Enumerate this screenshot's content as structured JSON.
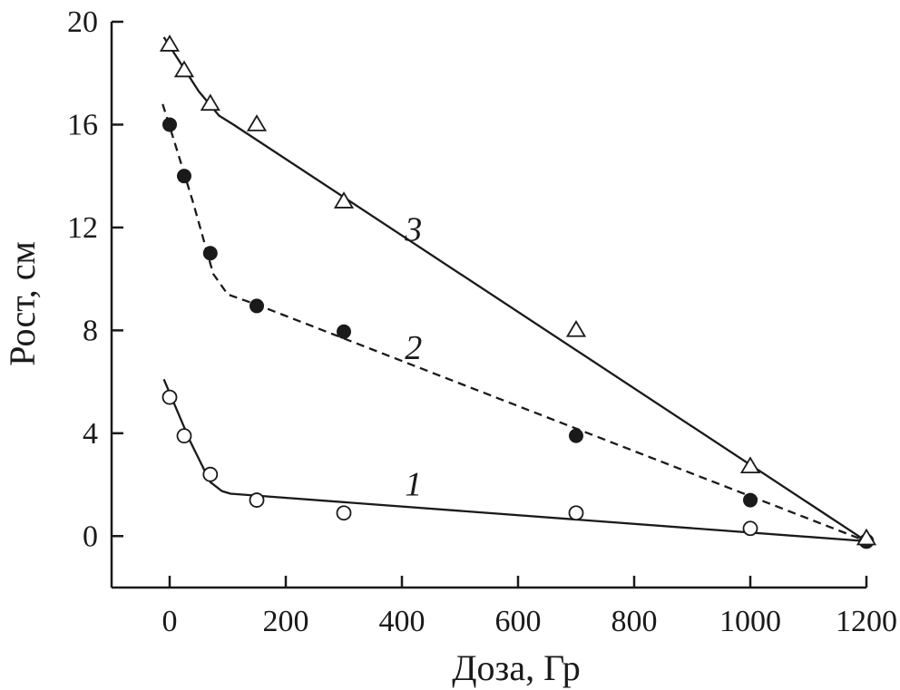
{
  "chart_data": {
    "type": "line",
    "xlabel": "Доза, Гр",
    "ylabel": "Рост, см",
    "xlim": [
      -100,
      1200
    ],
    "ylim": [
      -2,
      20
    ],
    "x_ticks": [
      0,
      200,
      400,
      600,
      800,
      1000,
      1200
    ],
    "y_ticks": [
      0,
      4,
      8,
      12,
      16,
      20
    ],
    "x_tick_labels": [
      "0",
      "200",
      "400",
      "600",
      "800",
      "1000",
      "1200"
    ],
    "y_tick_labels": [
      "0",
      "4",
      "8",
      "12",
      "16",
      "20"
    ],
    "grid": false,
    "series": [
      {
        "name": "1",
        "marker": "open-circle",
        "line_style": "solid",
        "points": [
          [
            0,
            5.4
          ],
          [
            25,
            3.9
          ],
          [
            70,
            2.4
          ],
          [
            150,
            1.4
          ],
          [
            300,
            0.9
          ],
          [
            700,
            0.9
          ],
          [
            1000,
            0.3
          ],
          [
            1200,
            -0.2
          ]
        ],
        "fit": [
          [
            -10,
            6.1
          ],
          [
            35,
            3.7
          ],
          [
            70,
            2.1
          ],
          [
            90,
            1.75
          ],
          [
            105,
            1.65
          ],
          [
            1200,
            -0.2
          ]
        ]
      },
      {
        "name": "2",
        "marker": "filled-circle",
        "line_style": "dashed",
        "points": [
          [
            0,
            16.0
          ],
          [
            25,
            14.0
          ],
          [
            70,
            11.0
          ],
          [
            150,
            8.95
          ],
          [
            300,
            7.95
          ],
          [
            700,
            3.9
          ],
          [
            1000,
            1.4
          ],
          [
            1200,
            -0.2
          ]
        ],
        "fit": [
          [
            -12,
            16.8
          ],
          [
            10,
            15.2
          ],
          [
            40,
            13.0
          ],
          [
            75,
            10.2
          ],
          [
            100,
            9.4
          ],
          [
            150,
            9.0
          ],
          [
            1200,
            -0.2
          ]
        ]
      },
      {
        "name": "3",
        "marker": "open-triangle",
        "line_style": "solid",
        "points": [
          [
            0,
            19.1
          ],
          [
            25,
            18.1
          ],
          [
            70,
            16.8
          ],
          [
            150,
            16.0
          ],
          [
            300,
            13.0
          ],
          [
            700,
            8.0
          ],
          [
            1000,
            2.7
          ],
          [
            1200,
            -0.1
          ]
        ],
        "fit": [
          [
            -10,
            19.4
          ],
          [
            50,
            17.3
          ],
          [
            85,
            16.35
          ],
          [
            110,
            16.0
          ],
          [
            1200,
            -0.2
          ]
        ]
      }
    ],
    "series_labels": [
      {
        "text": "1",
        "x": 420,
        "y": 2.0
      },
      {
        "text": "2",
        "x": 420,
        "y": 7.3
      },
      {
        "text": "3",
        "x": 420,
        "y": 11.9
      }
    ]
  }
}
